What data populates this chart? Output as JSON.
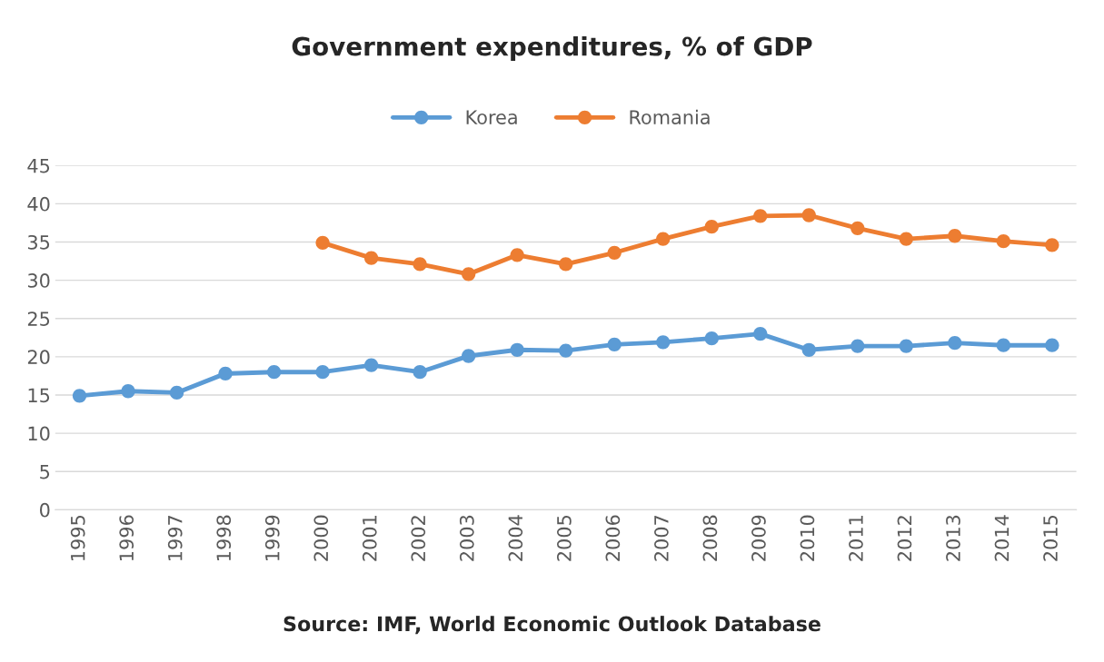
{
  "chart_data": {
    "type": "line",
    "title": "Government expenditures, % of GDP",
    "categories": [
      "1995",
      "1996",
      "1997",
      "1998",
      "1999",
      "2000",
      "2001",
      "2002",
      "2003",
      "2004",
      "2005",
      "2006",
      "2007",
      "2008",
      "2009",
      "2010",
      "2011",
      "2012",
      "2013",
      "2014",
      "2015"
    ],
    "series": [
      {
        "name": "Korea",
        "color": "#5b9bd5",
        "values": [
          14.9,
          15.5,
          15.3,
          17.8,
          18.0,
          18.0,
          18.9,
          18.0,
          20.1,
          20.9,
          20.8,
          21.6,
          21.9,
          22.4,
          23.0,
          20.9,
          21.4,
          21.4,
          21.8,
          21.5,
          21.5
        ]
      },
      {
        "name": "Romania",
        "color": "#ed7d31",
        "values": [
          null,
          null,
          null,
          null,
          null,
          34.9,
          32.9,
          32.1,
          30.8,
          33.3,
          32.1,
          33.6,
          35.4,
          37.0,
          38.4,
          38.5,
          36.8,
          35.4,
          35.8,
          35.1,
          34.6
        ]
      }
    ],
    "ylim": [
      0,
      45
    ],
    "yticks": [
      0,
      5,
      10,
      15,
      20,
      25,
      30,
      35,
      40,
      45
    ],
    "grid": "y",
    "legend": "top",
    "marker": "circle",
    "line_style": "solid",
    "annotations": [
      "Source: IMF, World Economic Outlook Database"
    ]
  }
}
